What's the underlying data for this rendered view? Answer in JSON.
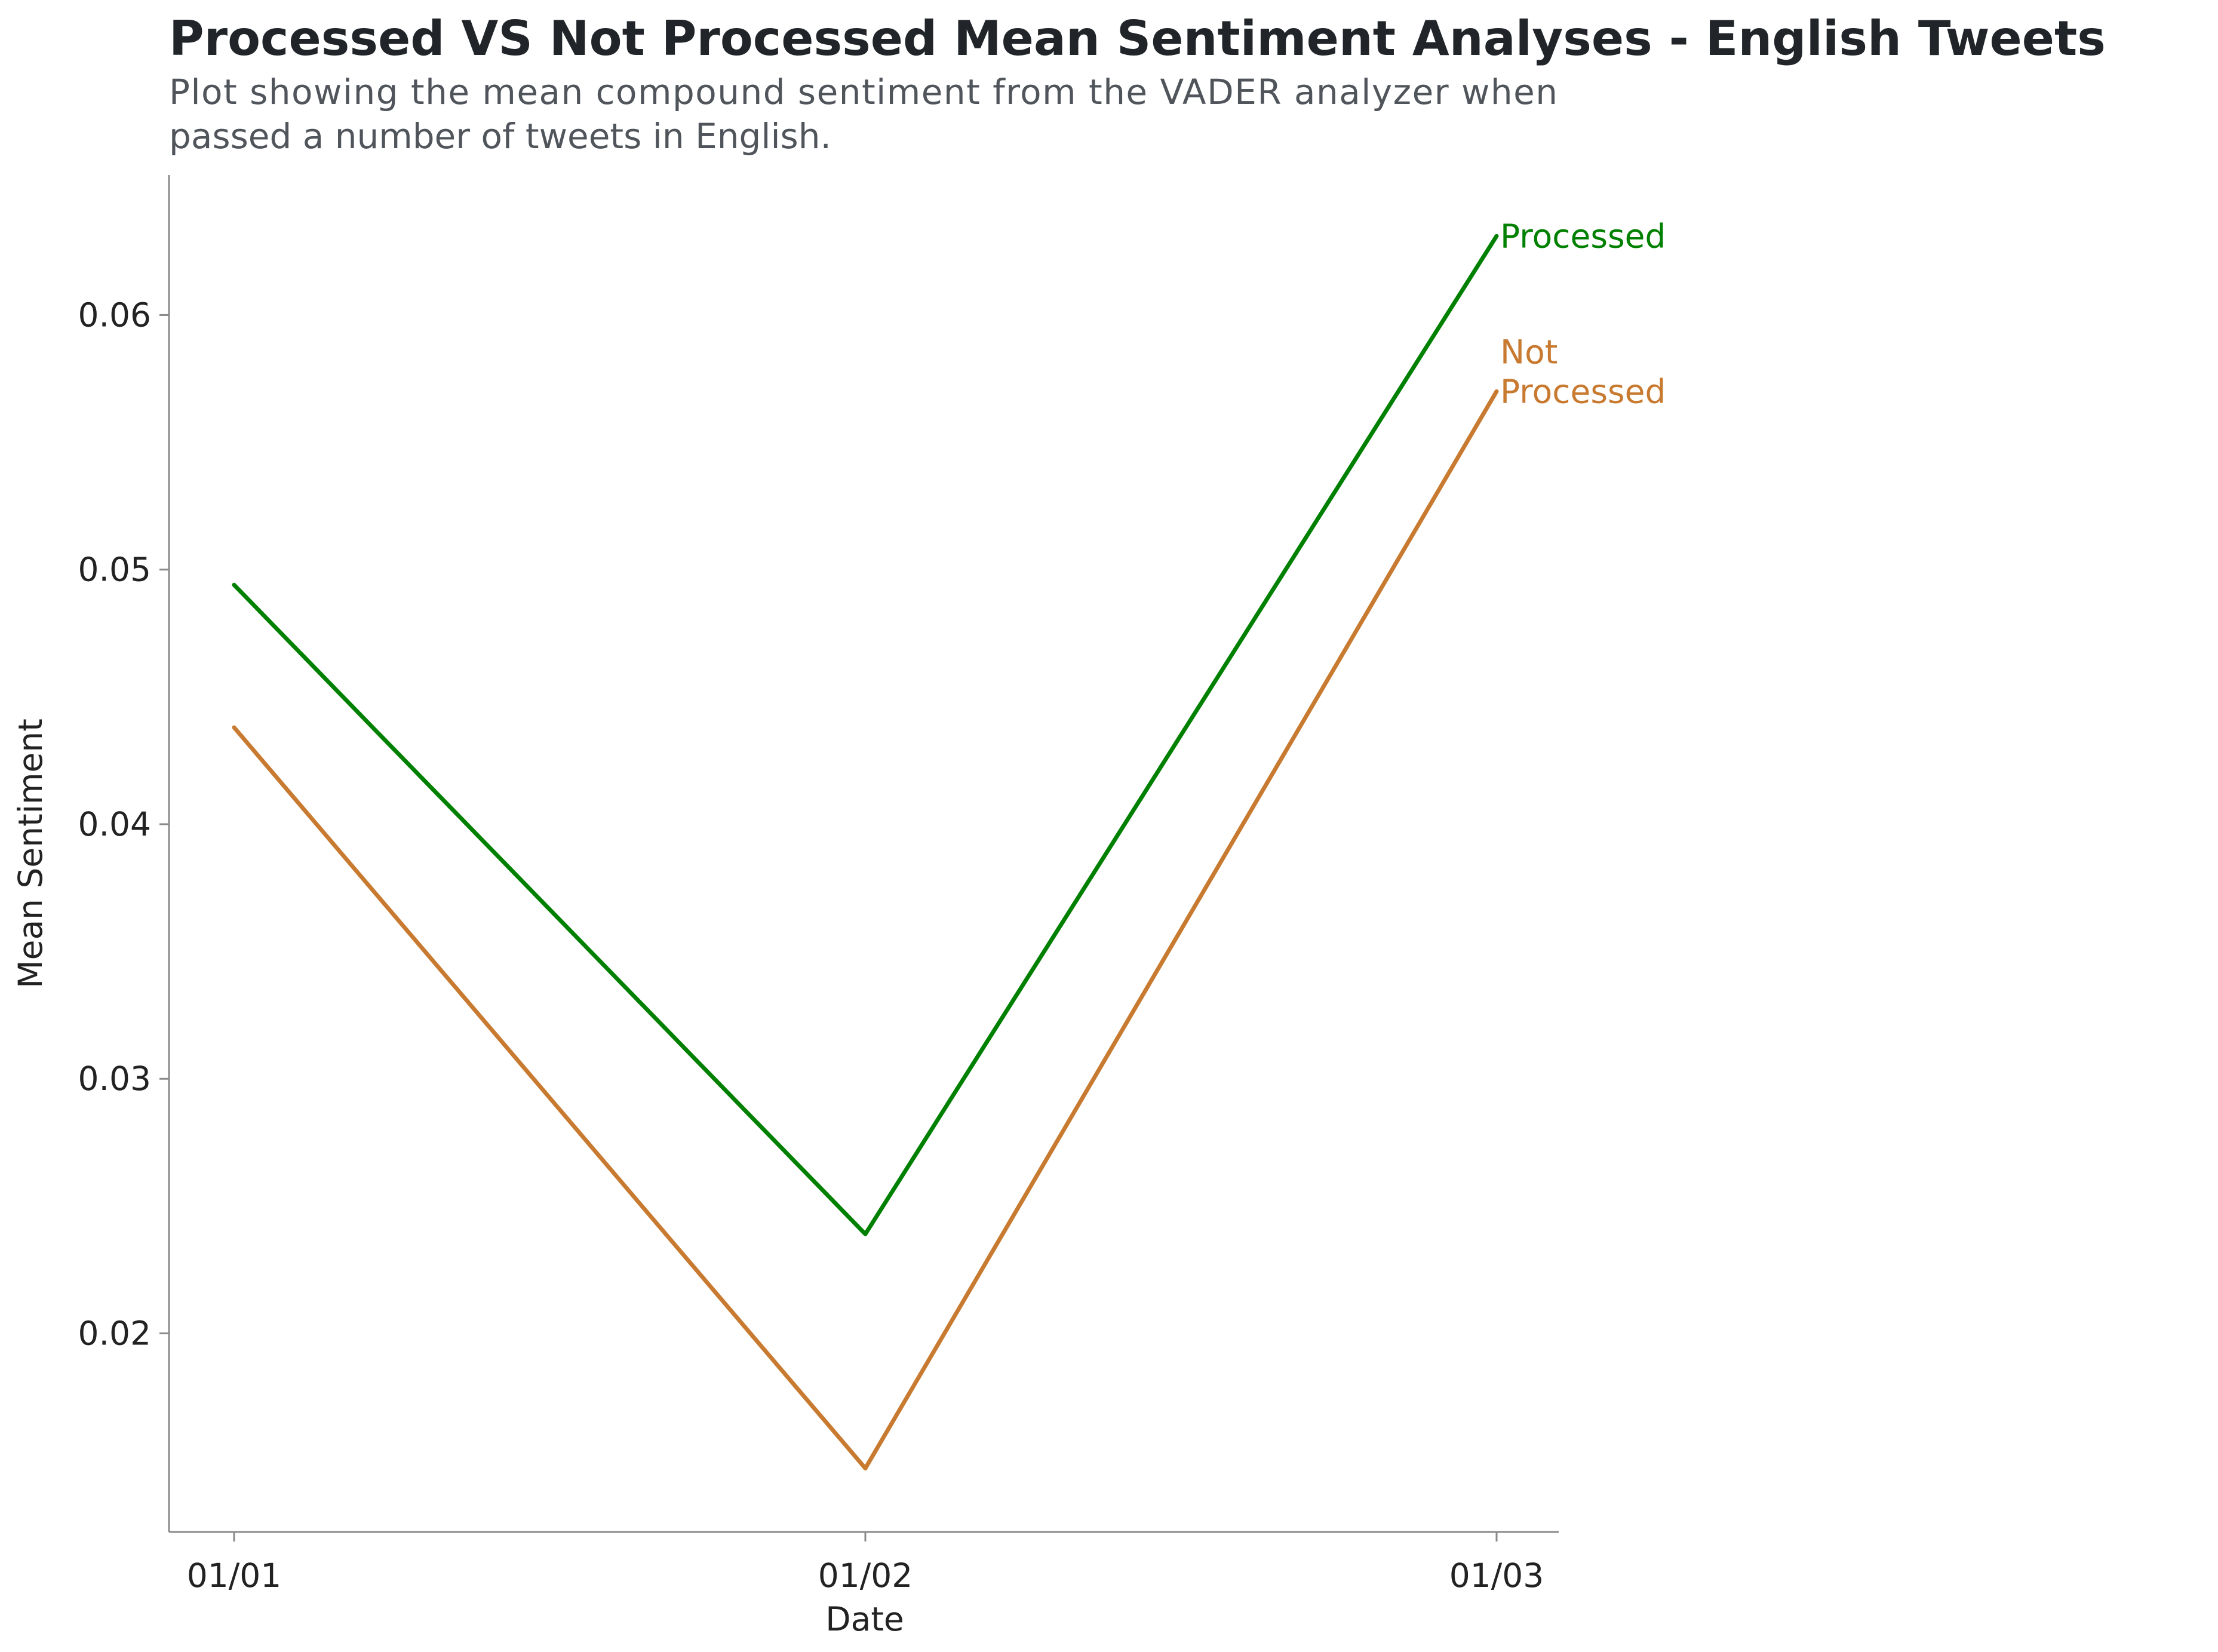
{
  "chart_data": {
    "type": "line",
    "title": "Processed VS Not Processed Mean Sentiment Analyses - English Tweets",
    "subtitle_lines": [
      "Plot showing the mean compound sentiment from the VADER analyzer when",
      "passed a number of tweets in English."
    ],
    "xlabel": "Date",
    "ylabel": "Mean Sentiment",
    "categories": [
      "01/01",
      "01/02",
      "01/03"
    ],
    "ylim": [
      0.0122,
      0.0655
    ],
    "yticks": [
      0.02,
      0.03,
      0.04,
      0.05,
      0.06
    ],
    "ytick_labels": [
      "0.02",
      "0.03",
      "0.04",
      "0.05",
      "0.06"
    ],
    "grid": false,
    "legend": "direct labels at line ends (right)",
    "series": [
      {
        "name": "Processed",
        "label_lines": [
          "Processed"
        ],
        "values": [
          0.0494,
          0.0239,
          0.0631
        ],
        "color": "#008000"
      },
      {
        "name": "Not Processed",
        "label_lines": [
          "Not",
          "Processed"
        ],
        "values": [
          0.0438,
          0.0147,
          0.057
        ],
        "color": "#c87a30"
      }
    ]
  }
}
